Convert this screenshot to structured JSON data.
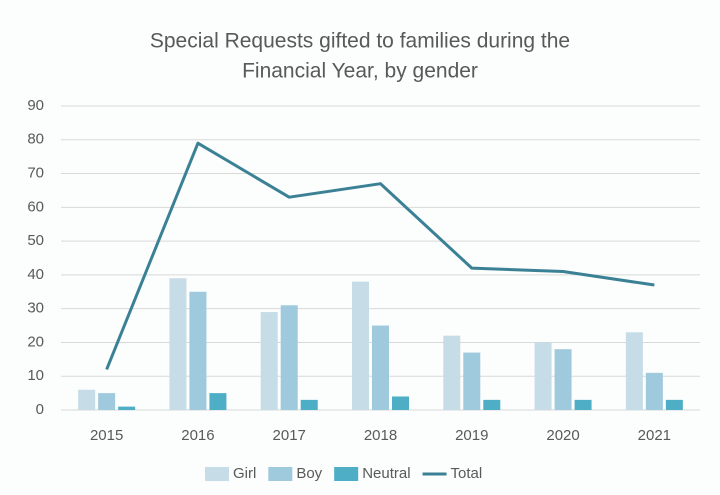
{
  "chart_data": {
    "type": "bar",
    "title": [
      "Special Requests gifted to families during the",
      "Financial Year, by gender"
    ],
    "categories": [
      "2015",
      "2016",
      "2017",
      "2018",
      "2019",
      "2020",
      "2021"
    ],
    "series": [
      {
        "name": "Girl",
        "color": "#c6dce7",
        "values": [
          6,
          39,
          29,
          38,
          22,
          20,
          23
        ]
      },
      {
        "name": "Boy",
        "color": "#9fc9dd",
        "values": [
          5,
          35,
          31,
          25,
          17,
          18,
          11
        ]
      },
      {
        "name": "Neutral",
        "color": "#4eaec6",
        "values": [
          1,
          5,
          3,
          4,
          3,
          3,
          3
        ]
      },
      {
        "name": "Total",
        "color": "#3b8195",
        "type": "line",
        "values": [
          12,
          79,
          63,
          67,
          42,
          41,
          37
        ]
      }
    ],
    "ylim": [
      0,
      90
    ],
    "yticks": [
      0,
      10,
      20,
      30,
      40,
      50,
      60,
      70,
      80,
      90
    ],
    "grid": true,
    "legend": "bottom"
  }
}
